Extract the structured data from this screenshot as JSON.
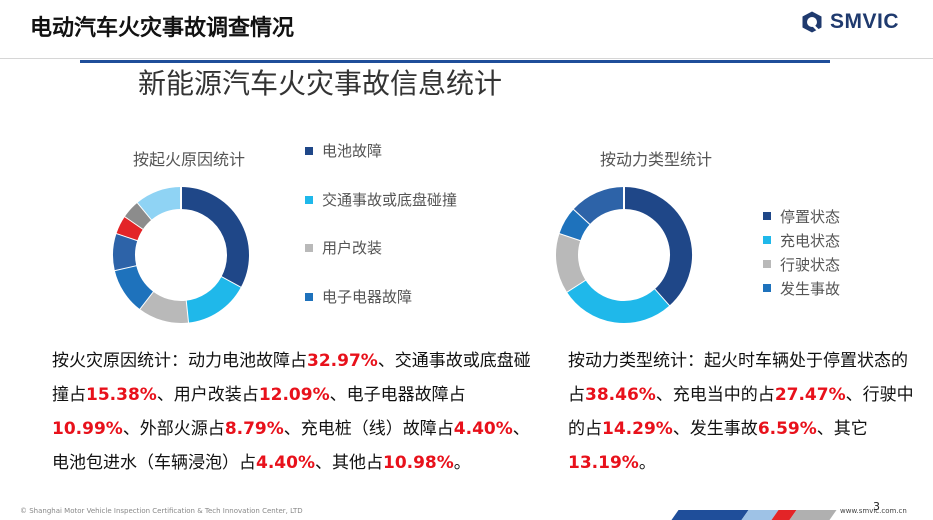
{
  "header": {
    "title": "电动汽车火灾事故调查情况",
    "logo_text": "SMVIC"
  },
  "subtitle": "新能源汽车火灾事故信息统计",
  "chart_data": [
    {
      "type": "pie",
      "title": "按起火原因统计",
      "categories": [
        "动力电池故障",
        "交通事故或底盘碰撞",
        "用户改装",
        "电子电器故障",
        "外部火源",
        "充电桩（线）故障",
        "电池包进水（车辆浸泡）",
        "其他"
      ],
      "values": [
        32.97,
        15.38,
        12.09,
        10.99,
        8.79,
        4.4,
        4.4,
        10.98
      ],
      "colors": [
        "#1f4788",
        "#1fb8ea",
        "#b9b9b9",
        "#1e72bc",
        "#2d63a8",
        "#e32427",
        "#8c8c8c",
        "#8fd3f4"
      ],
      "legend": [
        {
          "label": "电池故障",
          "color": "#1f4788"
        },
        {
          "label": "交通事故或底盘碰撞",
          "color": "#1fb8ea"
        },
        {
          "label": "用户改装",
          "color": "#b9b9b9"
        },
        {
          "label": "电子电器故障",
          "color": "#1e72bc"
        }
      ],
      "legend_position": "right"
    },
    {
      "type": "pie",
      "title": "按动力类型统计",
      "categories": [
        "停置状态",
        "充电状态",
        "行驶状态",
        "发生事故",
        "其它"
      ],
      "values": [
        38.46,
        27.47,
        14.29,
        6.59,
        13.19
      ],
      "colors": [
        "#1f4788",
        "#1fb8ea",
        "#b9b9b9",
        "#1e72bc",
        "#2d63a8"
      ],
      "legend": [
        {
          "label": "停置状态",
          "color": "#1f4788"
        },
        {
          "label": "充电状态",
          "color": "#1fb8ea"
        },
        {
          "label": "行驶状态",
          "color": "#b9b9b9"
        },
        {
          "label": "发生事故",
          "color": "#1e72bc"
        }
      ],
      "legend_position": "right"
    }
  ],
  "summary_left": [
    {
      "text": "按火灾原因统计：动力电池故障占"
    },
    {
      "text": "32.97%",
      "hl": true
    },
    {
      "text": "、交通事故或底盘碰撞占"
    },
    {
      "text": "15.38%",
      "hl": true
    },
    {
      "text": "、用户改装占"
    },
    {
      "text": "12.09%",
      "hl": true
    },
    {
      "text": "、电子电器故障占"
    },
    {
      "text": "10.99%",
      "hl": true
    },
    {
      "text": "、外部火源占"
    },
    {
      "text": "8.79%",
      "hl": true
    },
    {
      "text": "、充电桩（线）故障占"
    },
    {
      "text": "4.40%",
      "hl": true
    },
    {
      "text": "、电池包进水（车辆浸泡）占"
    },
    {
      "text": "4.40%",
      "hl": true
    },
    {
      "text": "、其他占"
    },
    {
      "text": "10.98%",
      "hl": true
    },
    {
      "text": "。"
    }
  ],
  "summary_right": [
    {
      "text": "按动力类型统计：起火时车辆处于停置状态的占"
    },
    {
      "text": "38.46%",
      "hl": true
    },
    {
      "text": "、充电当中的占"
    },
    {
      "text": "27.47%",
      "hl": true
    },
    {
      "text": "、行驶中的占"
    },
    {
      "text": "14.29%",
      "hl": true
    },
    {
      "text": "、发生事故"
    },
    {
      "text": "6.59%",
      "hl": true
    },
    {
      "text": "、其它"
    },
    {
      "text": "13.19%",
      "hl": true
    },
    {
      "text": "。"
    }
  ],
  "footer": {
    "copyright": "© Shanghai Motor Vehicle Inspection Certification & Tech Innovation Center, LTD",
    "url": "www.smvic.com.cn",
    "page_number": "3",
    "bar_colors": [
      "#1f4e9a",
      "#9ec2e6",
      "#e32427",
      "#b0b0b0"
    ]
  }
}
